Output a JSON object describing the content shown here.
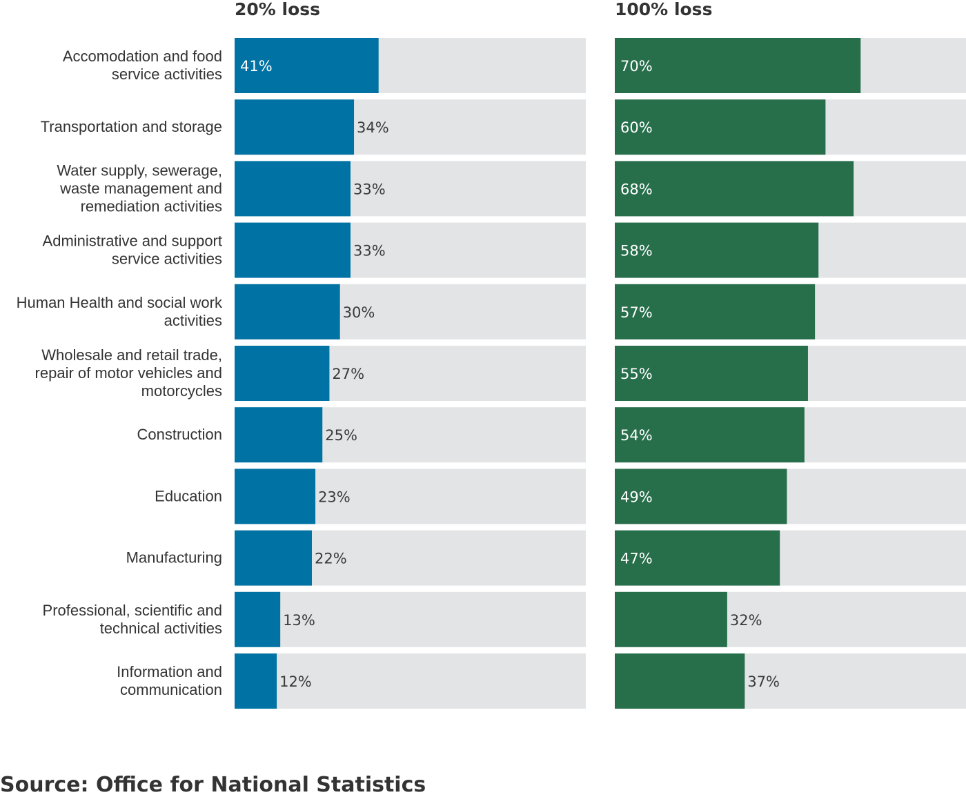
{
  "source": "Source: Office for National Statistics",
  "colors": {
    "track": "#e3e4e6",
    "label_dark": "#3a3a3a",
    "label_light": "#ffffff"
  },
  "chart_data": {
    "type": "bar",
    "orientation": "horizontal",
    "categories": [
      [
        "Accomodation and food",
        "service activities"
      ],
      [
        "Transportation and storage"
      ],
      [
        "Water supply, sewerage,",
        "waste management and",
        "remediation activities"
      ],
      [
        "Administrative and support",
        "service activities"
      ],
      [
        "Human Health and social work",
        "activities"
      ],
      [
        "Wholesale and retail trade,",
        "repair of motor vehicles and",
        "motorcycles"
      ],
      [
        "Construction"
      ],
      [
        "Education"
      ],
      [
        "Manufacturing"
      ],
      [
        "Professional, scientific and",
        "technical activities"
      ],
      [
        "Information and",
        "communication"
      ]
    ],
    "panels": [
      {
        "title": "20% loss",
        "color": "#0072a3",
        "xlim": [
          0,
          100
        ],
        "values": [
          41,
          34,
          33,
          33,
          30,
          27,
          25,
          23,
          22,
          13,
          12
        ],
        "labels": [
          "41%",
          "34%",
          "33%",
          "33%",
          "30%",
          "27%",
          "25%",
          "23%",
          "22%",
          "13%",
          "12%"
        ]
      },
      {
        "title": "100% loss",
        "color": "#276e4b",
        "xlim": [
          0,
          100
        ],
        "values": [
          70,
          60,
          68,
          58,
          57,
          55,
          54,
          49,
          47,
          32,
          37
        ],
        "labels": [
          "70%",
          "60%",
          "68%",
          "58%",
          "57%",
          "55%",
          "54%",
          "49%",
          "47%",
          "32%",
          "37%"
        ]
      }
    ]
  }
}
